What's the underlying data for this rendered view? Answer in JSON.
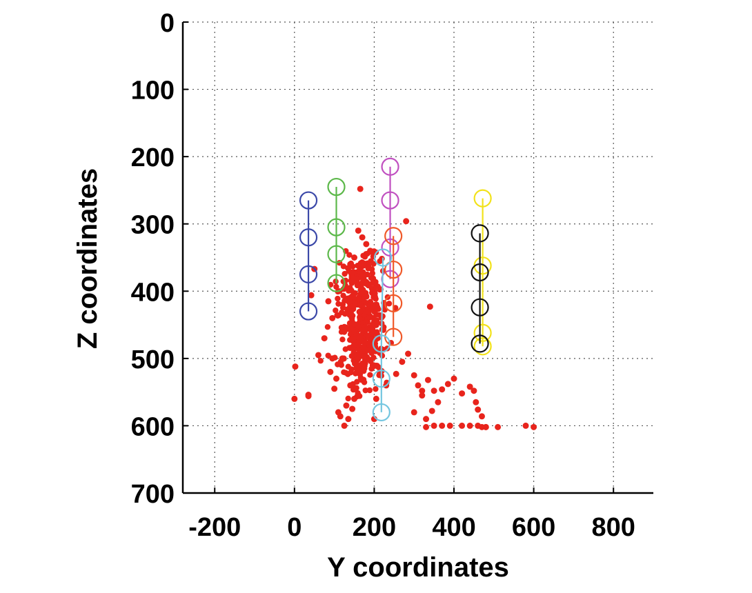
{
  "chart_data": {
    "type": "scatter",
    "title": "",
    "xlabel": "Y coordinates",
    "ylabel": "Z coordinates",
    "xlim": [
      -280,
      900
    ],
    "ylim": [
      0,
      700
    ],
    "y_reversed": true,
    "x_ticks": [
      -200,
      0,
      200,
      400,
      600,
      800
    ],
    "x_tick_labels": [
      "-200",
      "0",
      "200",
      "400",
      "600",
      "800"
    ],
    "y_ticks": [
      0,
      100,
      200,
      300,
      400,
      500,
      600,
      700
    ],
    "y_tick_labels": [
      "0",
      "100",
      "200",
      "300",
      "400",
      "500",
      "600",
      "700"
    ],
    "grid": true,
    "series": [
      {
        "color": "#3b48a8",
        "marker": "open-circle",
        "line": true,
        "x": [
          35,
          35,
          35,
          35
        ],
        "y": [
          265,
          320,
          375,
          430
        ]
      },
      {
        "color": "#5cb84a",
        "marker": "open-circle",
        "line": true,
        "x": [
          105,
          105,
          105,
          105
        ],
        "y": [
          245,
          305,
          345,
          388
        ]
      },
      {
        "color": "#c050c0",
        "marker": "open-circle",
        "line": true,
        "x": [
          240,
          240,
          240,
          240
        ],
        "y": [
          215,
          265,
          335,
          382
        ]
      },
      {
        "color": "#f05a2a",
        "marker": "open-circle",
        "line": true,
        "x": [
          248,
          248,
          248,
          248
        ],
        "y": [
          318,
          368,
          418,
          468
        ]
      },
      {
        "color": "#74c6e0",
        "marker": "open-circle",
        "line": true,
        "x": [
          222,
          218,
          218,
          218
        ],
        "y": [
          350,
          478,
          530,
          580
        ]
      },
      {
        "color": "#f2e21a",
        "marker": "open-circle",
        "line": true,
        "x": [
          472,
          472,
          472,
          472
        ],
        "y": [
          262,
          362,
          462,
          482
        ]
      },
      {
        "color": "#111111",
        "marker": "open-circle",
        "line": true,
        "x": [
          465,
          465,
          465,
          465
        ],
        "y": [
          314,
          372,
          424,
          478
        ]
      },
      {
        "color": "#e8241c",
        "marker": "filled-dot",
        "line": false,
        "x": [
          165,
          280,
          50,
          42,
          85,
          95,
          75,
          340,
          60,
          35,
          0,
          120,
          105,
          140,
          150,
          130,
          115,
          100,
          90,
          125,
          110,
          95,
          135,
          160,
          175,
          145,
          205,
          230,
          255,
          270,
          285,
          300,
          310,
          320,
          335,
          350,
          320,
          300,
          330,
          345,
          360,
          370,
          385,
          400,
          420,
          440,
          450,
          455,
          460,
          470,
          480,
          330,
          350,
          370,
          390,
          420,
          440,
          460,
          470,
          480,
          510,
          580,
          600,
          2,
          35,
          160,
          170,
          180,
          190,
          150,
          140,
          200
        ],
        "y": [
          248,
          296,
          367,
          406,
          415,
          440,
          470,
          423,
          495,
          556,
          560,
          500,
          530,
          540,
          560,
          570,
          586,
          545,
          520,
          600,
          580,
          500,
          590,
          510,
          515,
          575,
          560,
          540,
          523,
          505,
          493,
          525,
          540,
          548,
          532,
          548,
          555,
          580,
          590,
          578,
          565,
          546,
          538,
          530,
          552,
          542,
          548,
          565,
          576,
          586,
          602,
          602,
          600,
          600,
          600,
          600,
          600,
          600,
          602,
          602,
          602,
          600,
          602,
          512,
          554,
          310,
          320,
          330,
          340,
          350,
          360,
          590
        ]
      }
    ],
    "dense_cluster": {
      "color": "#e8241c",
      "count": 500,
      "x_center": 170,
      "x_spread": 30,
      "y_center": 440,
      "y_spread": 55
    },
    "legend": "none"
  }
}
